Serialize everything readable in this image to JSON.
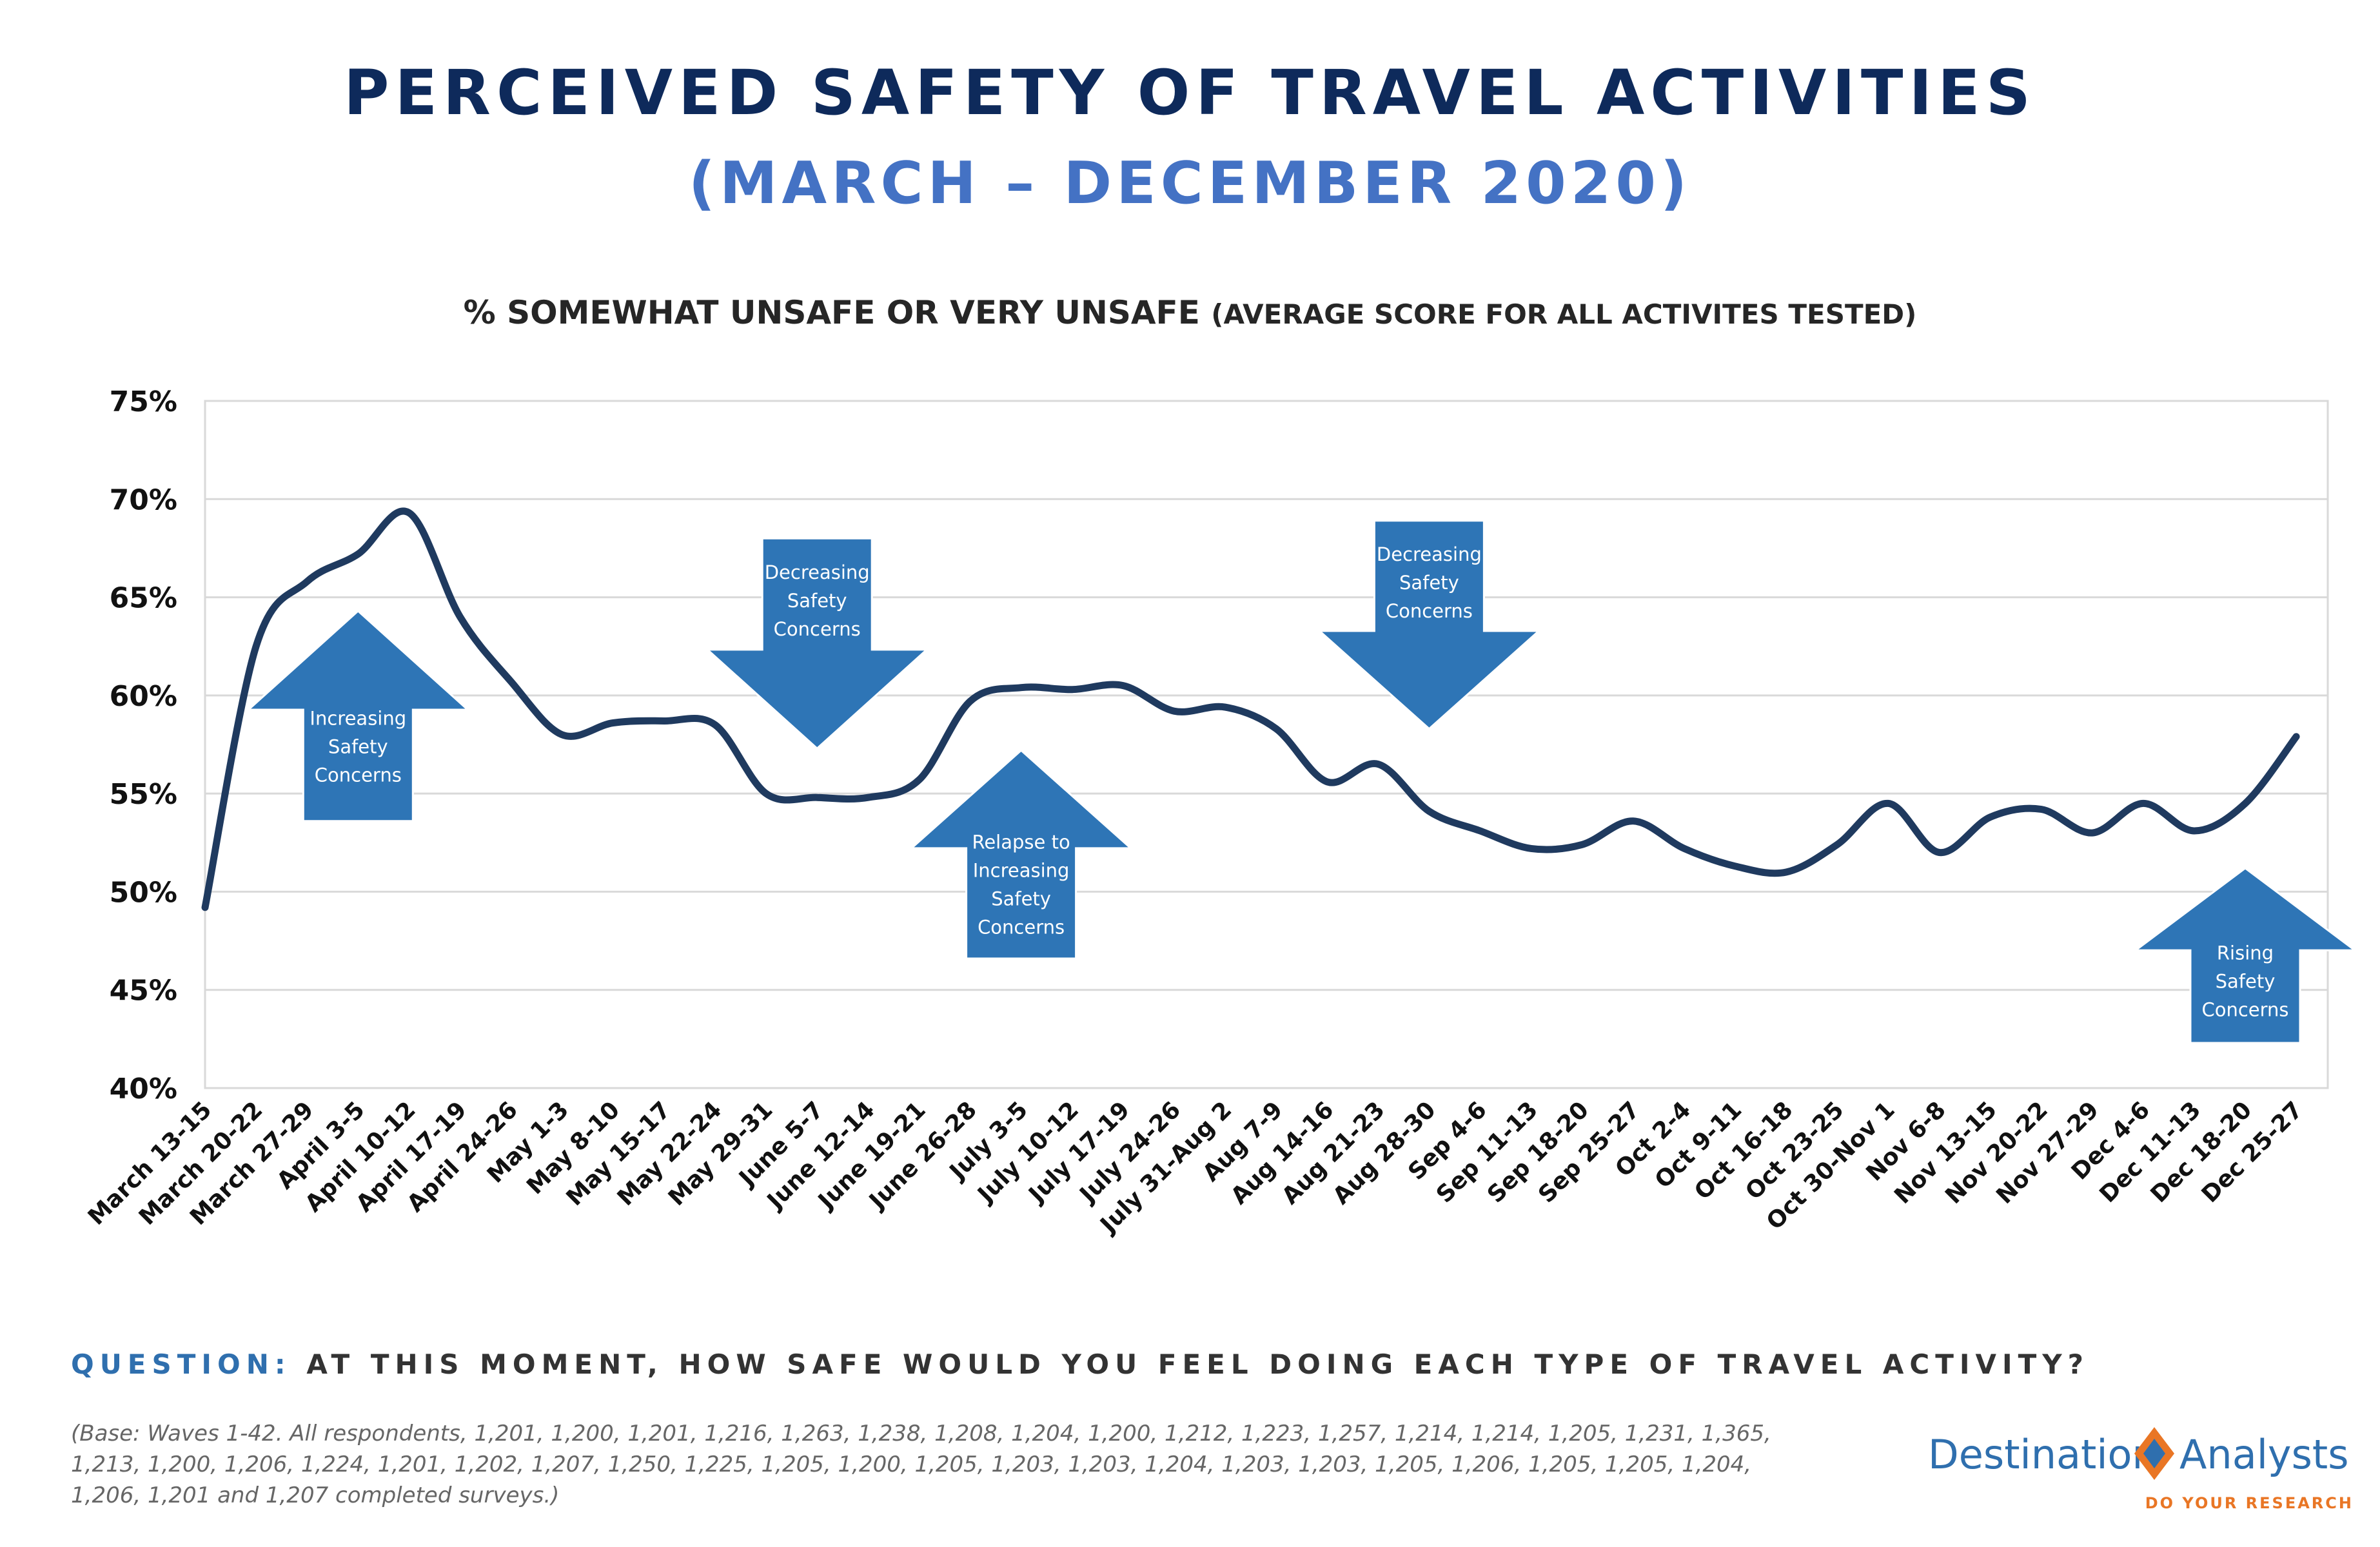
{
  "header": {
    "title": "PERCEIVED SAFETY OF TRAVEL ACTIVITIES",
    "subtitle": "(MARCH – DECEMBER 2020)",
    "chart_heading_main": "% SOMEWHAT UNSAFE OR VERY UNSAFE",
    "chart_heading_note": "(AVERAGE SCORE FOR ALL ACTIVITES TESTED)"
  },
  "chart_data": {
    "type": "line",
    "ylim": [
      0.4,
      0.75
    ],
    "yticks": [
      {
        "value": 0.75,
        "label": "75%"
      },
      {
        "value": 0.7,
        "label": "70%"
      },
      {
        "value": 0.65,
        "label": "65%"
      },
      {
        "value": 0.6,
        "label": "60%"
      },
      {
        "value": 0.55,
        "label": "55%"
      },
      {
        "value": 0.5,
        "label": "50%"
      },
      {
        "value": 0.45,
        "label": "45%"
      },
      {
        "value": 0.4,
        "label": "40%"
      }
    ],
    "grid": true,
    "legend": "none",
    "line_color": "#1f3a5f",
    "categories": [
      "March 13-15",
      "March 20-22",
      "March 27-29",
      "April 3-5",
      "April 10-12",
      "April 17-19",
      "April 24-26",
      "May 1-3",
      "May 8-10",
      "May 15-17",
      "May 22-24",
      "May 29-31",
      "June 5-7",
      "June 12-14",
      "June 19-21",
      "June 26-28",
      "July 3-5",
      "July 10-12",
      "July 17-19",
      "July 24-26",
      "July 31-Aug 2",
      "Aug 7-9",
      "Aug 14-16",
      "Aug 21-23",
      "Aug 28-30",
      "Sep 4-6",
      "Sep 11-13",
      "Sep 18-20",
      "Sep 25-27",
      "Oct 2-4",
      "Oct 9-11",
      "Oct 16-18",
      "Oct 23-25",
      "Oct 30-Nov 1",
      "Nov 6-8",
      "Nov 13-15",
      "Nov 20-22",
      "Nov 27-29",
      "Dec 4-6",
      "Dec 11-13",
      "Dec 18-20",
      "Dec 25-27"
    ],
    "series": [
      {
        "values": [
          0.492,
          0.625,
          0.658,
          0.672,
          0.693,
          0.64,
          0.607,
          0.58,
          0.586,
          0.587,
          0.585,
          0.55,
          0.548,
          0.548,
          0.557,
          0.597,
          0.604,
          0.603,
          0.605,
          0.592,
          0.594,
          0.583,
          0.556,
          0.565,
          0.541,
          0.531,
          0.522,
          0.524,
          0.536,
          0.522,
          0.513,
          0.51,
          0.524,
          0.545,
          0.52,
          0.538,
          0.542,
          0.53,
          0.545,
          0.531,
          0.545,
          0.579
        ]
      }
    ],
    "annotations": [
      {
        "text": [
          "Increasing",
          "Safety",
          "Concerns"
        ],
        "direction": "up",
        "at_category": "April 3-5",
        "top_value": 0.643,
        "bottom_value": 0.536
      },
      {
        "text": [
          "Decreasing",
          "Safety",
          "Concerns"
        ],
        "direction": "down",
        "at_category": "June 5-7",
        "top_value": 0.68,
        "bottom_value": 0.573
      },
      {
        "text": [
          "Relapse to",
          "Increasing",
          "Safety",
          "Concerns"
        ],
        "direction": "up",
        "at_category": "July 3-5",
        "top_value": 0.572,
        "bottom_value": 0.466
      },
      {
        "text": [
          "Decreasing",
          "Safety",
          "Concerns"
        ],
        "direction": "down",
        "at_category": "Aug 28-30",
        "top_value": 0.689,
        "bottom_value": 0.583
      },
      {
        "text": [
          "Rising",
          "Safety",
          "Concerns"
        ],
        "direction": "up",
        "at_category": "Dec 18-20",
        "top_value": 0.512,
        "bottom_value": 0.423
      }
    ]
  },
  "footer": {
    "question_label": "QUESTION:",
    "question_text": "AT THIS MOMENT, HOW SAFE WOULD YOU FEEL DOING EACH TYPE OF TRAVEL ACTIVITY?",
    "base_note": "(Base: Waves 1-42. All respondents, 1,201, 1,200, 1,201, 1,216, 1,263, 1,238, 1,208, 1,204, 1,200, 1,212, 1,223, 1,257, 1,214, 1,214, 1,205, 1,231, 1,365, 1,213, 1,200, 1,206, 1,224, 1,201, 1,202, 1,207, 1,250, 1,225, 1,205, 1,200, 1,205, 1,203, 1,203, 1,204, 1,203, 1,203, 1,205, 1,206, 1,205, 1,205, 1,204, 1,206, 1,201 and 1,207 completed surveys.)"
  },
  "logo": {
    "word1": "Destination",
    "word2": "Analysts",
    "tagline": "DO YOUR RESEARCH",
    "colors": {
      "blue": "#2f6fae",
      "orange": "#e97625"
    }
  },
  "colors": {
    "title": "#0e2a5b",
    "subtitle": "#4472c4",
    "arrow_fill": "#2e75b6",
    "gridline": "#d9d9d9"
  }
}
